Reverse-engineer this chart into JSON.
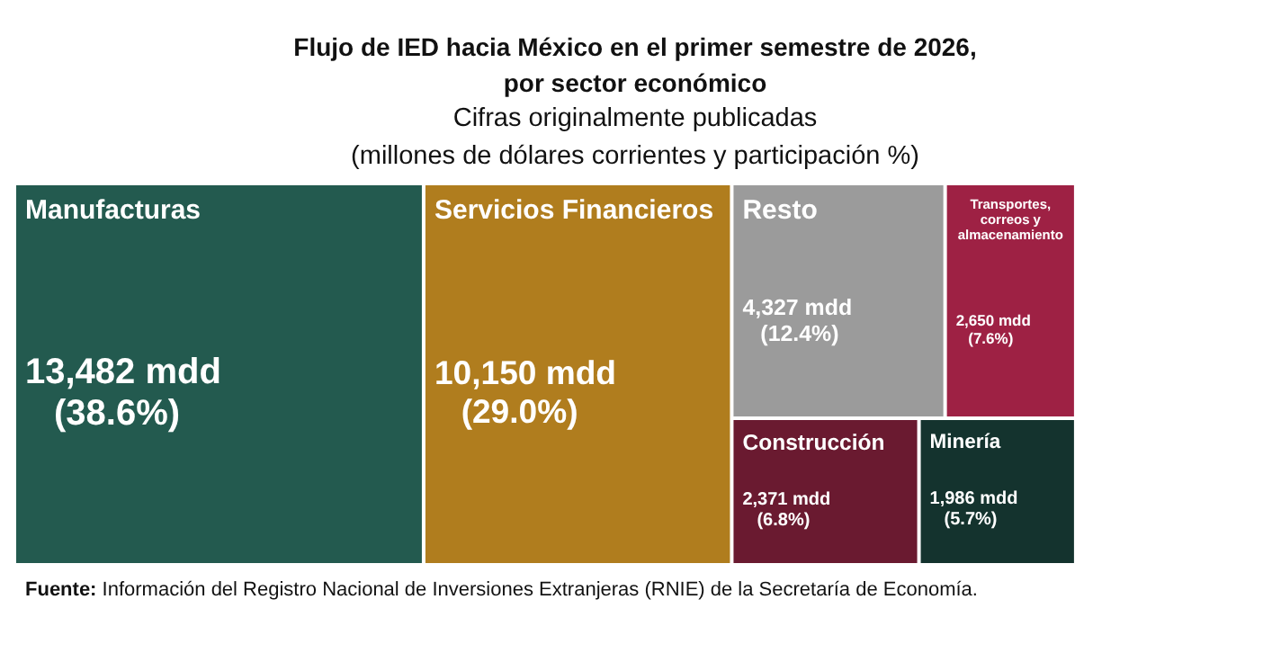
{
  "chart_data": {
    "type": "other",
    "title": "Flujo de IED hacia México en el primer semestre de 2026,\npor sector económico",
    "subtitle": "Cifras originalmente publicadas\n(millones de dólares corrientes y participación %)",
    "categories": [
      "Manufacturas",
      "Servicios Financieros",
      "Resto",
      "Transportes, correos y almacenamiento",
      "Construcción",
      "Minería"
    ],
    "values": [
      13482,
      10150,
      4327,
      2650,
      2371,
      1986
    ],
    "value_labels": [
      "13,482 mdd\n(38.6%)",
      "10,150 mdd\n(29.0%)",
      "4,327 mdd\n(12.4%)",
      "2,650 mdd\n(7.6%)",
      "2,371 mdd\n(6.8%)",
      "1,986 mdd\n(5.7%)"
    ],
    "colors": [
      "#235a4f",
      "#b07d1e",
      "#9b9b9b",
      "#9e2144",
      "#6a1a30",
      "#14332e"
    ],
    "annotations": [
      "Fuente: Información del Registro Nacional de Inversiones Extranjeras (RNIE) de la Secretaría de Economía."
    ]
  }
}
